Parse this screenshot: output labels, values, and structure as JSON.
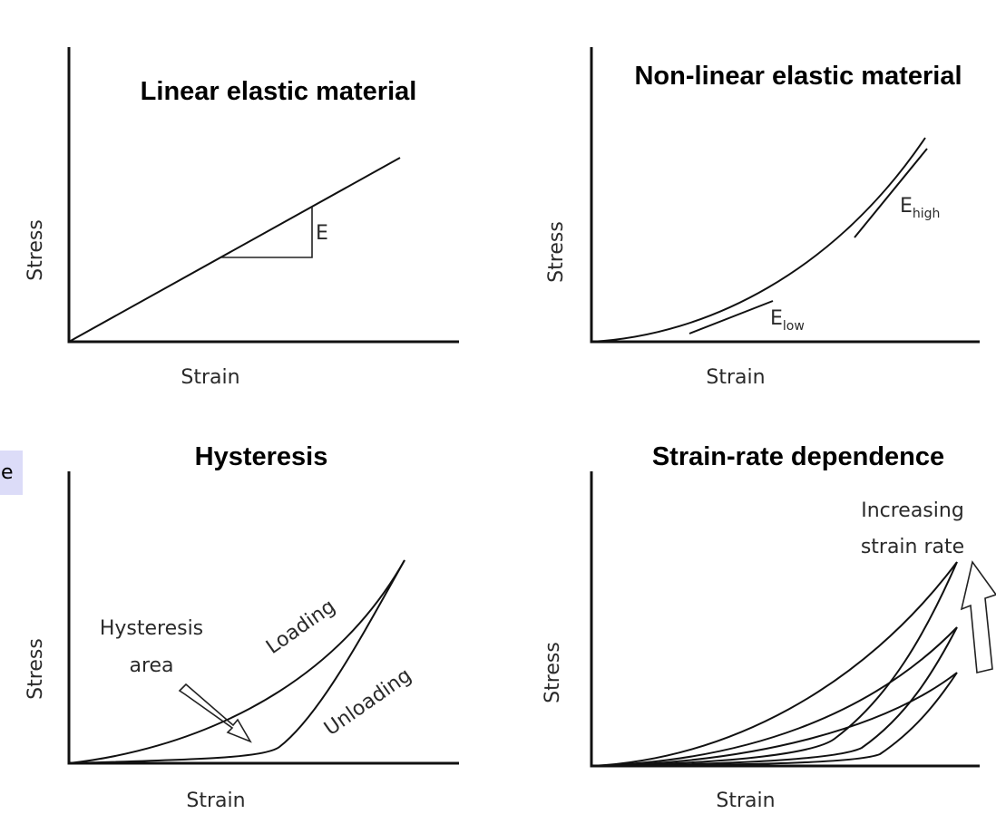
{
  "edge_chip": {
    "label": "e",
    "color": "#dcdcf8"
  },
  "panels": [
    {
      "title": "Linear elastic material",
      "xlabel": "Strain",
      "ylabel": "Stress",
      "annotation": "E"
    },
    {
      "title": "Non-linear elastic material",
      "xlabel": "Strain",
      "ylabel": "Stress",
      "annotations": {
        "high": {
          "main": "E",
          "sub": "high"
        },
        "low": {
          "main": "E",
          "sub": "low"
        }
      }
    },
    {
      "title": "Hysteresis",
      "xlabel": "Strain",
      "ylabel": "Stress",
      "annotations": {
        "area_line1": "Hysteresis",
        "area_line2": "area",
        "loading": "Loading",
        "unloading": "Unloading"
      }
    },
    {
      "title": "Strain-rate dependence",
      "xlabel": "Strain",
      "ylabel": "Stress",
      "annotations": {
        "line1": "Increasing",
        "line2": "strain rate"
      }
    }
  ]
}
